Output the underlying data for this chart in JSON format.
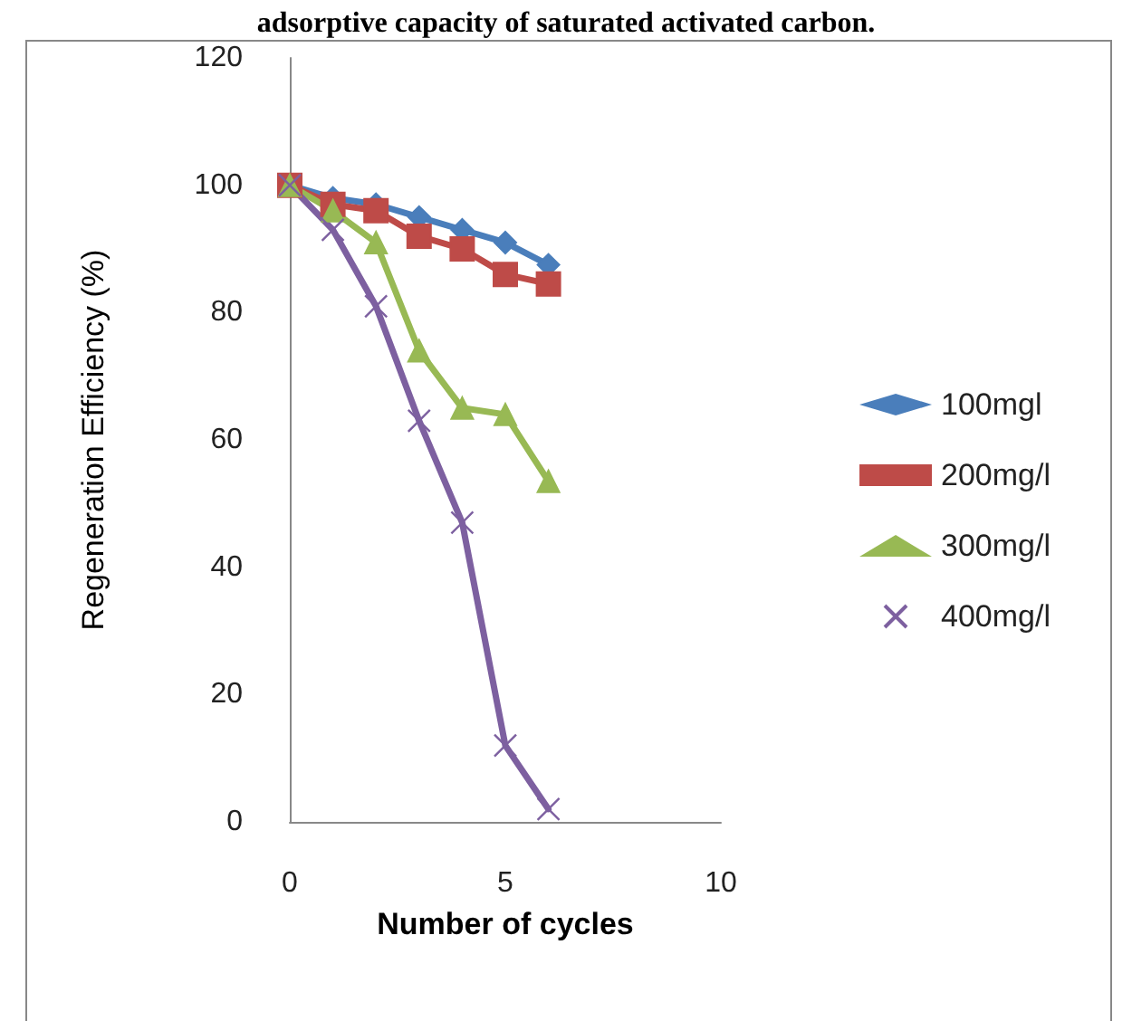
{
  "chart_data": {
    "type": "line",
    "title": "adsorptive capacity of saturated activated carbon.",
    "xlabel": "Number of cycles",
    "ylabel": "Regeneration Efficiency (%)",
    "x": [
      0,
      1,
      2,
      3,
      4,
      5,
      6
    ],
    "xlim": [
      0,
      10
    ],
    "xticks": [
      0,
      5,
      10
    ],
    "ylim": [
      0,
      120
    ],
    "yticks": [
      0,
      20,
      40,
      60,
      80,
      100,
      120
    ],
    "grid": false,
    "legend": "right",
    "series": [
      {
        "name": "100mgl",
        "color": "#4a7ebb",
        "marker": "diamond",
        "values": [
          100,
          98,
          97,
          95,
          93,
          91,
          87.5
        ]
      },
      {
        "name": "200mg/l",
        "color": "#be4b48",
        "marker": "square",
        "values": [
          100,
          97,
          96,
          92,
          90,
          86,
          84.5
        ]
      },
      {
        "name": "300mg/l",
        "color": "#98b954",
        "marker": "triangle",
        "values": [
          100,
          96,
          91,
          74,
          65,
          64,
          53.5
        ]
      },
      {
        "name": "400mg/l",
        "color": "#7d60a0",
        "marker": "cross",
        "values": [
          100,
          93,
          81,
          63,
          47,
          12,
          2
        ]
      }
    ]
  }
}
